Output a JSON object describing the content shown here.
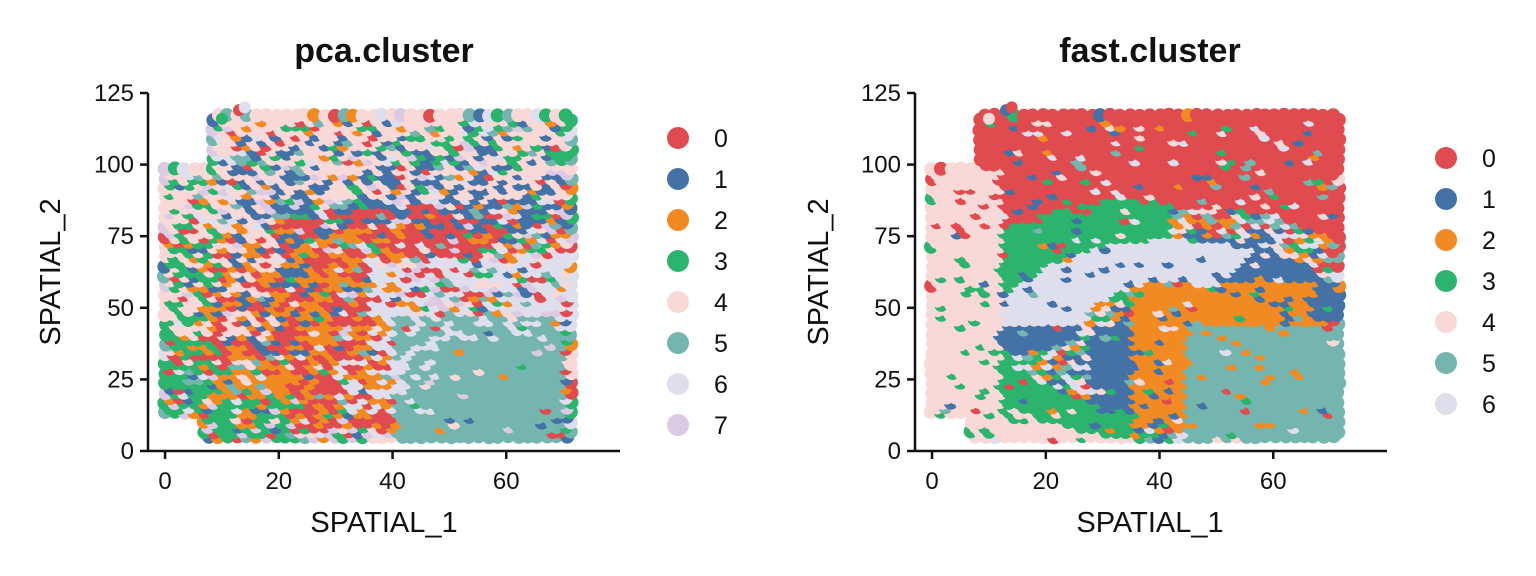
{
  "chart_data": [
    {
      "type": "scatter",
      "title": "pca.cluster",
      "xlabel": "SPATIAL_1",
      "ylabel": "SPATIAL_2",
      "xlim": [
        -3,
        80
      ],
      "ylim": [
        0,
        125
      ],
      "xticks": [
        "0",
        "20",
        "40",
        "60"
      ],
      "xtick_values": [
        0,
        20,
        40,
        60
      ],
      "yticks": [
        "0",
        "25",
        "50",
        "75",
        "100",
        "125"
      ],
      "ytick_values": [
        0,
        25,
        50,
        75,
        100,
        125
      ],
      "grid": false,
      "legend_position": "right",
      "legend": [
        "0",
        "1",
        "2",
        "3",
        "4",
        "5",
        "6",
        "7"
      ],
      "series": [
        {
          "name": "0",
          "color": "#E04B4F",
          "regions": [
            {
              "type": "band",
              "cx": 42,
              "cy": 45,
              "r_in": 18,
              "r_out": 42,
              "a0": 60,
              "a1": 200
            },
            {
              "type": "rect",
              "x0": 22,
              "x1": 40,
              "y0": 10,
              "y1": 55
            }
          ],
          "density": 0.65
        },
        {
          "name": "1",
          "color": "#4472A6",
          "regions": [
            {
              "type": "rect",
              "x0": 10,
              "x1": 68,
              "y0": 75,
              "y1": 112
            },
            {
              "type": "rect",
              "x0": 5,
              "x1": 25,
              "y0": 35,
              "y1": 75
            }
          ],
          "density": 0.35
        },
        {
          "name": "2",
          "color": "#F18A22",
          "regions": [
            {
              "type": "rect",
              "x0": 5,
              "x1": 42,
              "y0": 10,
              "y1": 80
            }
          ],
          "density": 0.3
        },
        {
          "name": "3",
          "color": "#2CB46E",
          "regions": [
            {
              "type": "rect",
              "x0": 0,
              "x1": 10,
              "y0": 10,
              "y1": 100
            },
            {
              "type": "rect",
              "x0": 0,
              "x1": 25,
              "y0": 5,
              "y1": 20
            },
            {
              "type": "rect",
              "x0": 40,
              "x1": 75,
              "y0": 100,
              "y1": 120
            }
          ],
          "density": 0.4
        },
        {
          "name": "4",
          "color": "#F9D8D8",
          "regions": [
            {
              "type": "rect",
              "x0": 0,
              "x1": 70,
              "y0": 90,
              "y1": 118
            },
            {
              "type": "rect",
              "x0": 0,
              "x1": 20,
              "y0": 40,
              "y1": 100
            }
          ],
          "density": 0.4
        },
        {
          "name": "5",
          "color": "#74B6AF",
          "regions": [
            {
              "type": "rect",
              "x0": 40,
              "x1": 70,
              "y0": 5,
              "y1": 48
            }
          ],
          "density": 0.9
        },
        {
          "name": "6",
          "color": "#DEDEEC",
          "regions": [
            {
              "type": "rect",
              "x0": 35,
              "x1": 72,
              "y0": 40,
              "y1": 70
            },
            {
              "type": "rect",
              "x0": 30,
              "x1": 48,
              "y0": 15,
              "y1": 45
            }
          ],
          "density": 0.35
        },
        {
          "name": "7",
          "color": "#DCC9E3",
          "regions": [
            {
              "type": "rect",
              "x0": 30,
              "x1": 50,
              "y0": 40,
              "y1": 75
            }
          ],
          "density": 0.05
        }
      ]
    },
    {
      "type": "scatter",
      "title": "fast.cluster",
      "xlabel": "SPATIAL_1",
      "ylabel": "SPATIAL_2",
      "xlim": [
        -3,
        80
      ],
      "ylim": [
        0,
        125
      ],
      "xticks": [
        "0",
        "20",
        "40",
        "60"
      ],
      "xtick_values": [
        0,
        20,
        40,
        60
      ],
      "yticks": [
        "0",
        "25",
        "50",
        "75",
        "100",
        "125"
      ],
      "ytick_values": [
        0,
        25,
        50,
        75,
        100,
        125
      ],
      "grid": false,
      "legend_position": "right",
      "legend": [
        "0",
        "1",
        "2",
        "3",
        "4",
        "5",
        "6"
      ],
      "series": [
        {
          "name": "0",
          "color": "#E04B4F",
          "regions": [
            {
              "type": "band",
              "cx": 42,
              "cy": 45,
              "r_in": 42,
              "r_out": 80,
              "a0": 40,
              "a1": 180
            },
            {
              "type": "rect",
              "x0": 0,
              "x1": 68,
              "y0": 85,
              "y1": 118
            }
          ],
          "density": 0.85
        },
        {
          "name": "1",
          "color": "#4472A6",
          "regions": [
            {
              "type": "band",
              "cx": 42,
              "cy": 45,
              "r_in": 15,
              "r_out": 32,
              "a0": 0,
              "a1": 200
            },
            {
              "type": "rect",
              "x0": 28,
              "x1": 40,
              "y0": 10,
              "y1": 45
            }
          ],
          "density": 0.85
        },
        {
          "name": "2",
          "color": "#F18A22",
          "regions": [
            {
              "type": "rect",
              "x0": 35,
              "x1": 68,
              "y0": 10,
              "y1": 60
            }
          ],
          "density": 0.75
        },
        {
          "name": "3",
          "color": "#2CB46E",
          "regions": [
            {
              "type": "band",
              "cx": 42,
              "cy": 45,
              "r_in": 30,
              "r_out": 45,
              "a0": 90,
              "a1": 260
            }
          ],
          "density": 0.85
        },
        {
          "name": "4",
          "color": "#F9D8D8",
          "regions": [
            {
              "type": "rect",
              "x0": 0,
              "x1": 12,
              "y0": 8,
              "y1": 100
            },
            {
              "type": "band",
              "cx": 42,
              "cy": 45,
              "r_in": 40,
              "r_out": 55,
              "a0": 140,
              "a1": 260
            }
          ],
          "density": 0.85
        },
        {
          "name": "5",
          "color": "#74B6AF",
          "regions": [
            {
              "type": "rect",
              "x0": 45,
              "x1": 72,
              "y0": 5,
              "y1": 45
            }
          ],
          "density": 0.9
        },
        {
          "name": "6",
          "color": "#DEDEEC",
          "regions": [
            {
              "type": "band",
              "cx": 42,
              "cy": 45,
              "r_in": 15,
              "r_out": 30,
              "a0": 60,
              "a1": 180
            }
          ],
          "density": 0.9
        }
      ]
    }
  ]
}
